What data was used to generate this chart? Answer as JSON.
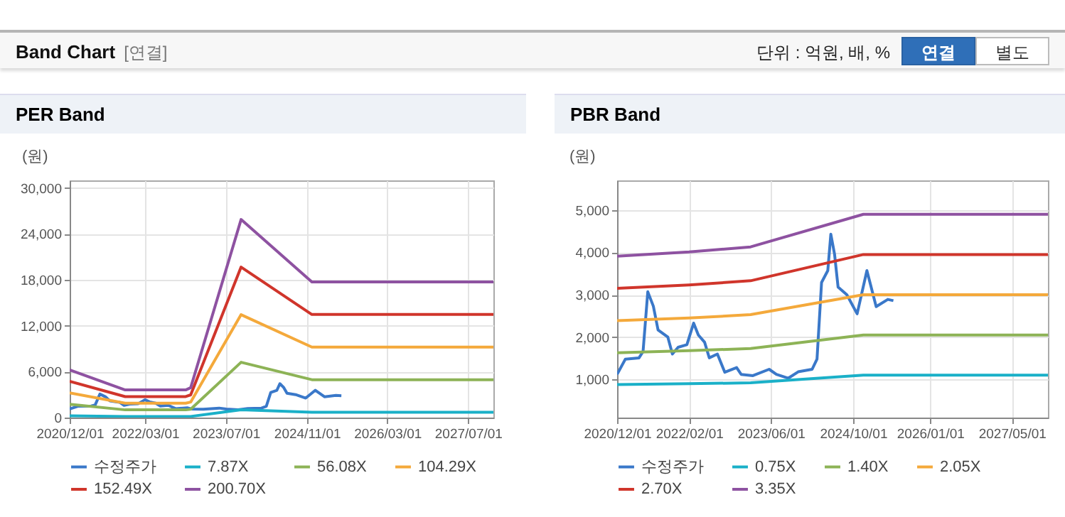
{
  "chart_data": [
    {
      "type": "other",
      "title": "Band Chart",
      "annotations": [
        "[연결]",
        "단위 : 억원, 배, %",
        "연결",
        "별도"
      ]
    },
    {
      "type": "line",
      "title": "PER Band",
      "ylabel": "(원)",
      "xlim": [
        "2020-12-01",
        "2027-12-01"
      ],
      "ylim": [
        0,
        31000
      ],
      "xticks": [
        {
          "value": "2020-12-01",
          "label": "2020/12/01"
        },
        {
          "value": "2022-03-01",
          "label": "2022/03/01"
        },
        {
          "value": "2023-07-01",
          "label": "2023/07/01"
        },
        {
          "value": "2024-11-01",
          "label": "2024/11/01"
        },
        {
          "value": "2026-03-01",
          "label": "2026/03/01"
        },
        {
          "value": "2027-07-01",
          "label": "2027/07/01"
        }
      ],
      "yticks": [
        0,
        {
          "value": 6000,
          "label": "6,000"
        },
        {
          "value": 12000,
          "label": "12,000"
        },
        {
          "value": 18000,
          "label": "18,000"
        },
        {
          "value": 24000,
          "label": "24,000"
        },
        {
          "value": 30000,
          "label": "30,000"
        }
      ],
      "grid": true,
      "legend": "bottom",
      "series": [
        {
          "name": "수정주가",
          "color": "#3a78c9",
          "x": [
            "2020-12-01",
            "2021-01-19",
            "2021-04-10",
            "2021-05-04",
            "2021-06-01",
            "2021-07-04",
            "2021-08-01",
            "2021-09-28",
            "2021-10-25",
            "2021-11-28",
            "2022-01-19",
            "2022-02-28",
            "2022-03-28",
            "2022-05-04",
            "2022-06-01",
            "2022-07-19",
            "2022-09-01",
            "2022-11-10",
            "2022-12-07",
            "2023-02-15",
            "2023-05-22",
            "2023-07-04",
            "2023-09-13",
            "2023-11-10",
            "2024-02-01",
            "2024-03-01",
            "2024-03-28",
            "2024-05-04",
            "2024-05-22",
            "2024-06-13",
            "2024-07-04",
            "2024-08-25",
            "2024-10-25",
            "2024-12-22",
            "2025-02-15",
            "2025-04-25",
            "2025-05-28"
          ],
          "values": [
            1120,
            1480,
            1510,
            1660,
            3070,
            2730,
            2170,
            2000,
            1600,
            1760,
            1820,
            2330,
            2050,
            1880,
            1510,
            1600,
            1170,
            1280,
            1120,
            1090,
            1240,
            1120,
            1030,
            1180,
            1240,
            1480,
            3290,
            3570,
            4430,
            3960,
            3180,
            3000,
            2550,
            3570,
            2720,
            2890,
            2860
          ]
        },
        {
          "name": "7.87X",
          "color": "#1ab0c8",
          "x": [
            "2020-12-01",
            "2021-11-01",
            "2022-11-01",
            "2022-12-01",
            "2023-10-01",
            "2024-12-01",
            "2027-12-01"
          ],
          "values": [
            240,
            140,
            140,
            150,
            1020,
            700,
            700
          ]
        },
        {
          "name": "56.08X",
          "color": "#8db356",
          "x": [
            "2020-12-01",
            "2021-11-01",
            "2022-11-01",
            "2022-12-01",
            "2023-10-01",
            "2024-12-01",
            "2027-12-01"
          ],
          "values": [
            1740,
            1010,
            1010,
            1090,
            7230,
            4950,
            4950
          ]
        },
        {
          "name": "104.29X",
          "color": "#f4a93b",
          "x": [
            "2020-12-01",
            "2021-11-01",
            "2022-11-01",
            "2022-12-01",
            "2023-10-01",
            "2024-12-01",
            "2027-12-01"
          ],
          "values": [
            3230,
            1880,
            1880,
            2030,
            13450,
            9210,
            9210
          ]
        },
        {
          "name": "152.49X",
          "color": "#d0352b",
          "x": [
            "2020-12-01",
            "2021-11-01",
            "2022-11-01",
            "2022-12-01",
            "2023-10-01",
            "2024-12-01",
            "2027-12-01"
          ],
          "values": [
            4730,
            2740,
            2740,
            2970,
            19670,
            13470,
            13470
          ]
        },
        {
          "name": "200.70X",
          "color": "#8e52a1",
          "x": [
            "2020-12-01",
            "2021-11-01",
            "2022-11-01",
            "2022-12-01",
            "2023-10-01",
            "2024-12-01",
            "2027-12-01"
          ],
          "values": [
            6220,
            3610,
            3610,
            3910,
            25890,
            17720,
            17720
          ]
        }
      ]
    },
    {
      "type": "line",
      "title": "PBR Band",
      "ylabel": "(원)",
      "xlim": [
        "2020-12-01",
        "2027-12-01"
      ],
      "ylim": [
        100,
        5700
      ],
      "xticks": [
        {
          "value": "2020-12-01",
          "label": "2020/12/01"
        },
        {
          "value": "2022-02-01",
          "label": "2022/02/01"
        },
        {
          "value": "2023-06-01",
          "label": "2023/06/01"
        },
        {
          "value": "2024-10-01",
          "label": "2024/10/01"
        },
        {
          "value": "2026-01-01",
          "label": "2026/01/01"
        },
        {
          "value": "2027-05-01",
          "label": "2027/05/01"
        }
      ],
      "yticks": [
        {
          "value": 1000,
          "label": "1,000"
        },
        {
          "value": 2000,
          "label": "2,000"
        },
        {
          "value": 3000,
          "label": "3,000"
        },
        {
          "value": 4000,
          "label": "4,000"
        },
        {
          "value": 5000,
          "label": "5,000"
        }
      ],
      "grid": true,
      "legend": "bottom",
      "series": [
        {
          "name": "수정주가",
          "color": "#3a78c9",
          "x": [
            "2020-12-01",
            "2021-01-19",
            "2021-04-10",
            "2021-05-04",
            "2021-06-01",
            "2021-07-04",
            "2021-08-01",
            "2021-09-28",
            "2021-10-25",
            "2021-11-28",
            "2022-01-19",
            "2022-02-28",
            "2022-03-28",
            "2022-05-04",
            "2022-06-01",
            "2022-07-19",
            "2022-09-01",
            "2022-11-10",
            "2022-12-07",
            "2023-02-15",
            "2023-05-22",
            "2023-07-04",
            "2023-09-13",
            "2023-11-10",
            "2024-02-01",
            "2024-03-01",
            "2024-03-28",
            "2024-05-04",
            "2024-05-22",
            "2024-06-13",
            "2024-07-04",
            "2024-08-25",
            "2024-10-25",
            "2024-12-22",
            "2025-02-15",
            "2025-04-25",
            "2025-05-28"
          ],
          "values": [
            1120,
            1480,
            1510,
            1660,
            3070,
            2730,
            2170,
            2000,
            1600,
            1760,
            1820,
            2330,
            2050,
            1880,
            1510,
            1600,
            1170,
            1280,
            1120,
            1090,
            1240,
            1120,
            1030,
            1180,
            1240,
            1480,
            3290,
            3570,
            4430,
            3960,
            3180,
            3000,
            2550,
            3570,
            2720,
            2890,
            2860
          ]
        },
        {
          "name": "0.75X",
          "color": "#1ab0c8",
          "x": [
            "2020-12-01",
            "2022-02-01",
            "2023-02-01",
            "2024-12-01",
            "2027-12-01"
          ],
          "values": [
            880,
            900,
            920,
            1100,
            1100
          ]
        },
        {
          "name": "1.40X",
          "color": "#8db356",
          "x": [
            "2020-12-01",
            "2022-02-01",
            "2023-02-01",
            "2024-12-01",
            "2027-12-01"
          ],
          "values": [
            1630,
            1680,
            1730,
            2050,
            2050
          ]
        },
        {
          "name": "2.05X",
          "color": "#f4a93b",
          "x": [
            "2020-12-01",
            "2022-02-01",
            "2023-02-01",
            "2024-12-01",
            "2027-12-01"
          ],
          "values": [
            2390,
            2450,
            2530,
            3000,
            3000
          ]
        },
        {
          "name": "2.70X",
          "color": "#d0352b",
          "x": [
            "2020-12-01",
            "2022-02-01",
            "2023-02-01",
            "2024-12-01",
            "2027-12-01"
          ],
          "values": [
            3150,
            3230,
            3330,
            3950,
            3950
          ]
        },
        {
          "name": "3.35X",
          "color": "#8e52a1",
          "x": [
            "2020-12-01",
            "2022-02-01",
            "2023-02-01",
            "2024-12-01",
            "2027-12-01"
          ],
          "values": [
            3910,
            4010,
            4130,
            4900,
            4900
          ]
        }
      ]
    }
  ]
}
